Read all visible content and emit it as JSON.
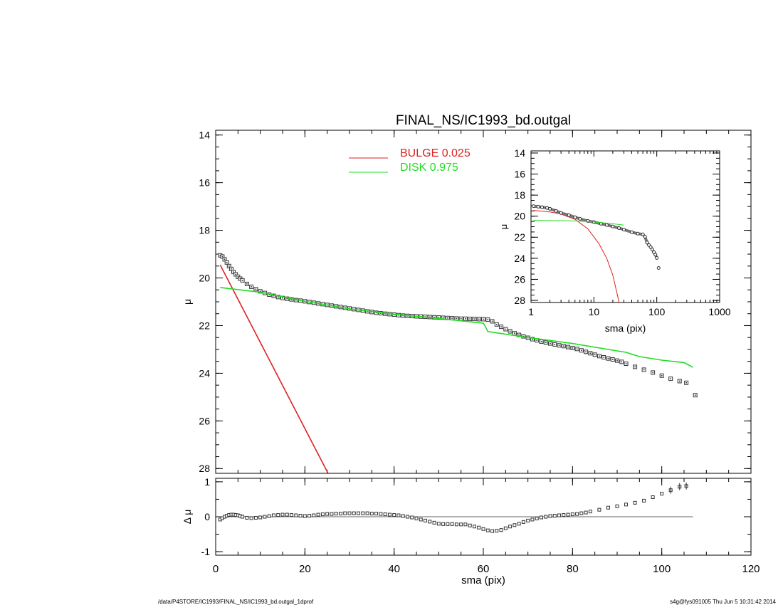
{
  "footer": {
    "path": "/data/P4STORE/IC1993/FINAL_NS/IC1993_bd.outgal_1dprof",
    "stamp": "s4g@fys091005  Thu Jun  5 10:31:42 2014"
  },
  "chart_data": [
    {
      "id": "main-profile",
      "type": "scatter",
      "title": "FINAL_NS/IC1993_bd.outgal",
      "xlabel": "",
      "ylabel": "μ",
      "xlim": [
        0,
        120
      ],
      "ylim": [
        28.2,
        13.8
      ],
      "y_inverted": true,
      "yticks": [
        14,
        16,
        18,
        20,
        22,
        24,
        26,
        28
      ],
      "legend": [
        {
          "label": "BULGE  0.025",
          "color": "#dd2222"
        },
        {
          "label": "DISK  0.975",
          "color": "#22dd22"
        }
      ],
      "series": [
        {
          "kind": "points",
          "x": [
            1,
            1.5,
            2,
            2.5,
            3,
            3.5,
            4,
            4.5,
            5,
            5.5,
            6,
            7,
            8,
            9,
            10,
            11,
            12,
            13,
            14,
            15,
            16,
            17,
            18,
            19,
            20,
            21,
            22,
            23,
            24,
            25,
            26,
            27,
            28,
            29,
            30,
            31,
            32,
            33,
            34,
            35,
            36,
            37,
            38,
            39,
            40,
            41,
            42,
            43,
            44,
            45,
            46,
            47,
            48,
            49,
            50,
            51,
            52,
            53,
            54,
            55,
            56,
            57,
            58,
            59,
            60,
            61,
            62,
            63,
            64,
            65,
            66,
            67,
            68,
            69,
            70,
            71,
            72,
            73,
            74,
            75,
            76,
            77,
            78,
            79,
            80,
            81,
            82,
            83,
            84,
            85,
            86,
            87,
            88,
            89,
            90,
            91,
            92,
            94,
            96,
            98,
            100,
            102,
            104,
            105.5,
            107.5
          ],
          "y": [
            19.05,
            19.1,
            19.22,
            19.35,
            19.5,
            19.62,
            19.75,
            19.85,
            19.95,
            20.03,
            20.1,
            20.25,
            20.37,
            20.47,
            20.56,
            20.63,
            20.7,
            20.75,
            20.8,
            20.84,
            20.87,
            20.9,
            20.93,
            20.95,
            20.98,
            21.01,
            21.04,
            21.07,
            21.1,
            21.13,
            21.16,
            21.19,
            21.22,
            21.25,
            21.28,
            21.31,
            21.34,
            21.37,
            21.4,
            21.43,
            21.46,
            21.48,
            21.5,
            21.52,
            21.54,
            21.56,
            21.58,
            21.59,
            21.6,
            21.61,
            21.62,
            21.63,
            21.64,
            21.65,
            21.66,
            21.67,
            21.68,
            21.69,
            21.7,
            21.71,
            21.71,
            21.72,
            21.72,
            21.73,
            21.73,
            21.75,
            21.82,
            21.95,
            22.05,
            22.15,
            22.24,
            22.32,
            22.39,
            22.45,
            22.51,
            22.57,
            22.62,
            22.67,
            22.71,
            22.75,
            22.79,
            22.83,
            22.86,
            22.9,
            22.94,
            22.98,
            23.04,
            23.1,
            23.16,
            23.22,
            23.28,
            23.33,
            23.38,
            23.42,
            23.47,
            23.52,
            23.6,
            23.73,
            23.85,
            23.97,
            24.1,
            24.23,
            24.33,
            24.4,
            24.92
          ]
        },
        {
          "name": "BULGE  0.025",
          "kind": "line",
          "color": "#dd2222",
          "x": [
            1,
            25.2
          ],
          "y": [
            19.45,
            28.2
          ]
        },
        {
          "name": "DISK  0.975",
          "kind": "line",
          "color": "#22dd22",
          "x": [
            1,
            10,
            20,
            30,
            40,
            50,
            60,
            60.5,
            61,
            70,
            80,
            90,
            92,
            95,
            100,
            105,
            107
          ],
          "y": [
            20.4,
            20.6,
            20.98,
            21.3,
            21.52,
            21.7,
            21.9,
            22.05,
            22.25,
            22.5,
            22.75,
            23.06,
            23.12,
            23.3,
            23.45,
            23.55,
            23.75
          ]
        }
      ]
    },
    {
      "id": "residuals",
      "type": "scatter",
      "xlabel": "sma (pix)",
      "ylabel": "Δ μ",
      "xlim": [
        0,
        120
      ],
      "ylim": [
        -1.1,
        1.1
      ],
      "xticks": [
        0,
        20,
        40,
        60,
        80,
        100,
        120
      ],
      "yticks": [
        -1,
        0,
        1
      ],
      "reference_line": 0,
      "series": [
        {
          "kind": "points",
          "x": [
            1,
            1.5,
            2,
            2.5,
            3,
            3.5,
            4,
            4.5,
            5,
            5.5,
            6,
            7,
            8,
            9,
            10,
            11,
            12,
            13,
            14,
            15,
            16,
            17,
            18,
            19,
            20,
            21,
            22,
            23,
            24,
            25,
            26,
            27,
            28,
            29,
            30,
            31,
            32,
            33,
            34,
            35,
            36,
            37,
            38,
            39,
            40,
            41,
            42,
            43,
            44,
            45,
            46,
            47,
            48,
            49,
            50,
            51,
            52,
            53,
            54,
            55,
            56,
            57,
            58,
            59,
            60,
            61,
            62,
            63,
            64,
            65,
            66,
            67,
            68,
            69,
            70,
            71,
            72,
            73,
            74,
            75,
            76,
            77,
            78,
            79,
            80,
            81,
            82,
            83,
            84,
            86,
            88,
            90,
            92,
            94,
            96,
            98,
            100,
            102,
            104,
            105.5
          ],
          "y": [
            -0.08,
            -0.04,
            0.0,
            0.03,
            0.05,
            0.06,
            0.06,
            0.05,
            0.04,
            0.02,
            0.0,
            -0.03,
            -0.04,
            -0.03,
            -0.02,
            0.0,
            0.02,
            0.04,
            0.05,
            0.06,
            0.06,
            0.05,
            0.04,
            0.03,
            0.02,
            0.03,
            0.04,
            0.06,
            0.07,
            0.08,
            0.08,
            0.09,
            0.09,
            0.1,
            0.1,
            0.1,
            0.1,
            0.1,
            0.1,
            0.09,
            0.09,
            0.08,
            0.07,
            0.06,
            0.05,
            0.04,
            0.02,
            0.0,
            -0.02,
            -0.05,
            -0.08,
            -0.11,
            -0.14,
            -0.17,
            -0.2,
            -0.21,
            -0.21,
            -0.21,
            -0.22,
            -0.22,
            -0.22,
            -0.25,
            -0.28,
            -0.31,
            -0.35,
            -0.39,
            -0.41,
            -0.4,
            -0.38,
            -0.33,
            -0.28,
            -0.24,
            -0.2,
            -0.15,
            -0.11,
            -0.08,
            -0.05,
            -0.02,
            0.0,
            0.02,
            0.03,
            0.04,
            0.05,
            0.06,
            0.07,
            0.08,
            0.1,
            0.12,
            0.15,
            0.2,
            0.26,
            0.3,
            0.35,
            0.4,
            0.46,
            0.56,
            0.66,
            0.76,
            0.86,
            0.88
          ]
        }
      ]
    },
    {
      "id": "inset-log",
      "type": "scatter",
      "xlabel": "sma (pix)",
      "ylabel": "μ",
      "xscale": "log",
      "xlim": [
        1,
        1000
      ],
      "ylim": [
        28.2,
        13.8
      ],
      "y_inverted": true,
      "xticks": [
        1,
        10,
        100,
        1000
      ],
      "yticks": [
        14,
        16,
        18,
        20,
        22,
        24,
        26,
        28
      ],
      "series": [
        {
          "kind": "points",
          "x": [
            1.1,
            1.3,
            1.5,
            1.8,
            2,
            2.5,
            3,
            4,
            5,
            6,
            8,
            10,
            13,
            16,
            20,
            25,
            30,
            40,
            50,
            60,
            65,
            70,
            75,
            80,
            85,
            90,
            95,
            100,
            107
          ],
          "y": [
            19.05,
            19.1,
            19.15,
            19.22,
            19.3,
            19.5,
            19.7,
            19.9,
            20.1,
            20.25,
            20.45,
            20.56,
            20.72,
            20.84,
            20.98,
            21.13,
            21.28,
            21.52,
            21.66,
            21.73,
            21.95,
            22.5,
            22.75,
            22.94,
            23.16,
            23.42,
            23.65,
            23.97,
            24.92
          ]
        },
        {
          "kind": "line",
          "color": "#dd2222",
          "x": [
            1.1,
            2,
            3,
            5,
            8,
            12,
            16,
            20,
            25.2
          ],
          "y": [
            19.45,
            19.6,
            19.8,
            20.3,
            21.2,
            22.6,
            24.0,
            25.6,
            28.2
          ]
        },
        {
          "kind": "line",
          "color": "#22dd22",
          "x": [
            1.1,
            5,
            10,
            20,
            30
          ],
          "y": [
            20.4,
            20.45,
            20.55,
            20.72,
            20.85
          ]
        }
      ]
    }
  ]
}
